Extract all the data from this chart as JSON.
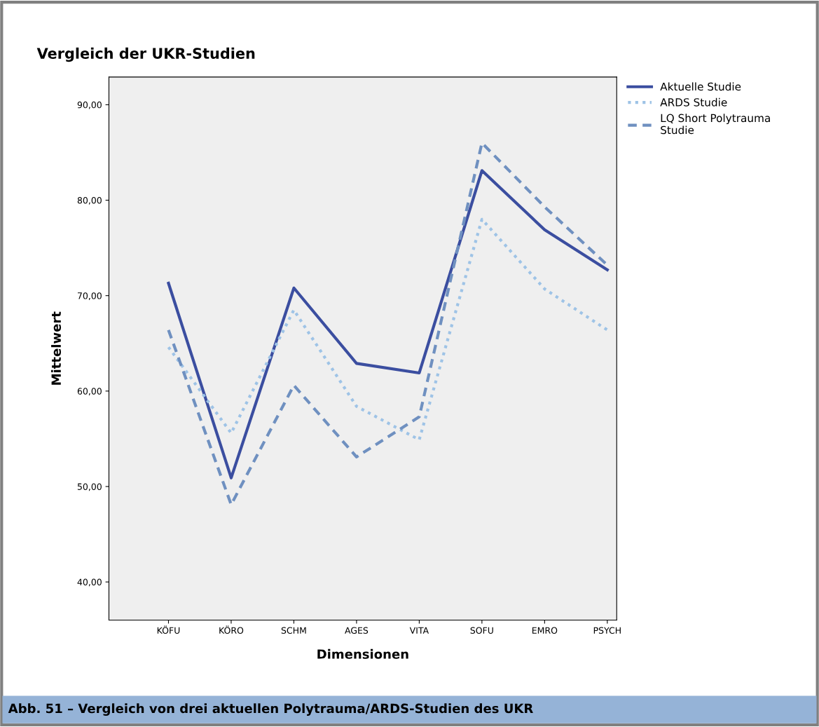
{
  "chart_data": {
    "type": "line",
    "title": "Vergleich der UKR-Studien",
    "xlabel": "Dimensionen",
    "ylabel": "Mittelwert",
    "categories": [
      "KÖFU",
      "KÖRO",
      "SCHM",
      "AGES",
      "VITA",
      "SOFU",
      "EMRO",
      "PSYCH"
    ],
    "series": [
      {
        "name": "Aktuelle Studie",
        "color": "#3b4ea0",
        "line_style": "solid",
        "values": [
          71.3,
          50.9,
          70.8,
          62.9,
          61.9,
          83.1,
          76.9,
          72.7
        ]
      },
      {
        "name": "ARDS Studie",
        "color": "#9ec3e6",
        "line_style": "dotted",
        "values": [
          64.6,
          55.6,
          68.5,
          58.4,
          54.9,
          78.0,
          70.7,
          66.4
        ]
      },
      {
        "name": "LQ Short Polytrauma\nStudie",
        "color": "#6f90c0",
        "line_style": "dashed",
        "values": [
          66.4,
          48.1,
          60.6,
          53.1,
          57.3,
          86.0,
          79.3,
          73.2
        ]
      }
    ],
    "ylim": [
      36,
      92.9
    ],
    "yticks": [
      {
        "value": 40,
        "label": "40,00"
      },
      {
        "value": 50,
        "label": "50,00"
      },
      {
        "value": 60,
        "label": "60,00"
      },
      {
        "value": 70,
        "label": "70,00"
      },
      {
        "value": 80,
        "label": "80,00"
      },
      {
        "value": 90,
        "label": "90,00"
      }
    ],
    "grid": false,
    "legend": "top right",
    "marker": "none",
    "annotations": [
      "Abb. 51 – Vergleich von drei aktuellen Polytrauma/ARDS-Studien des UKR"
    ]
  }
}
